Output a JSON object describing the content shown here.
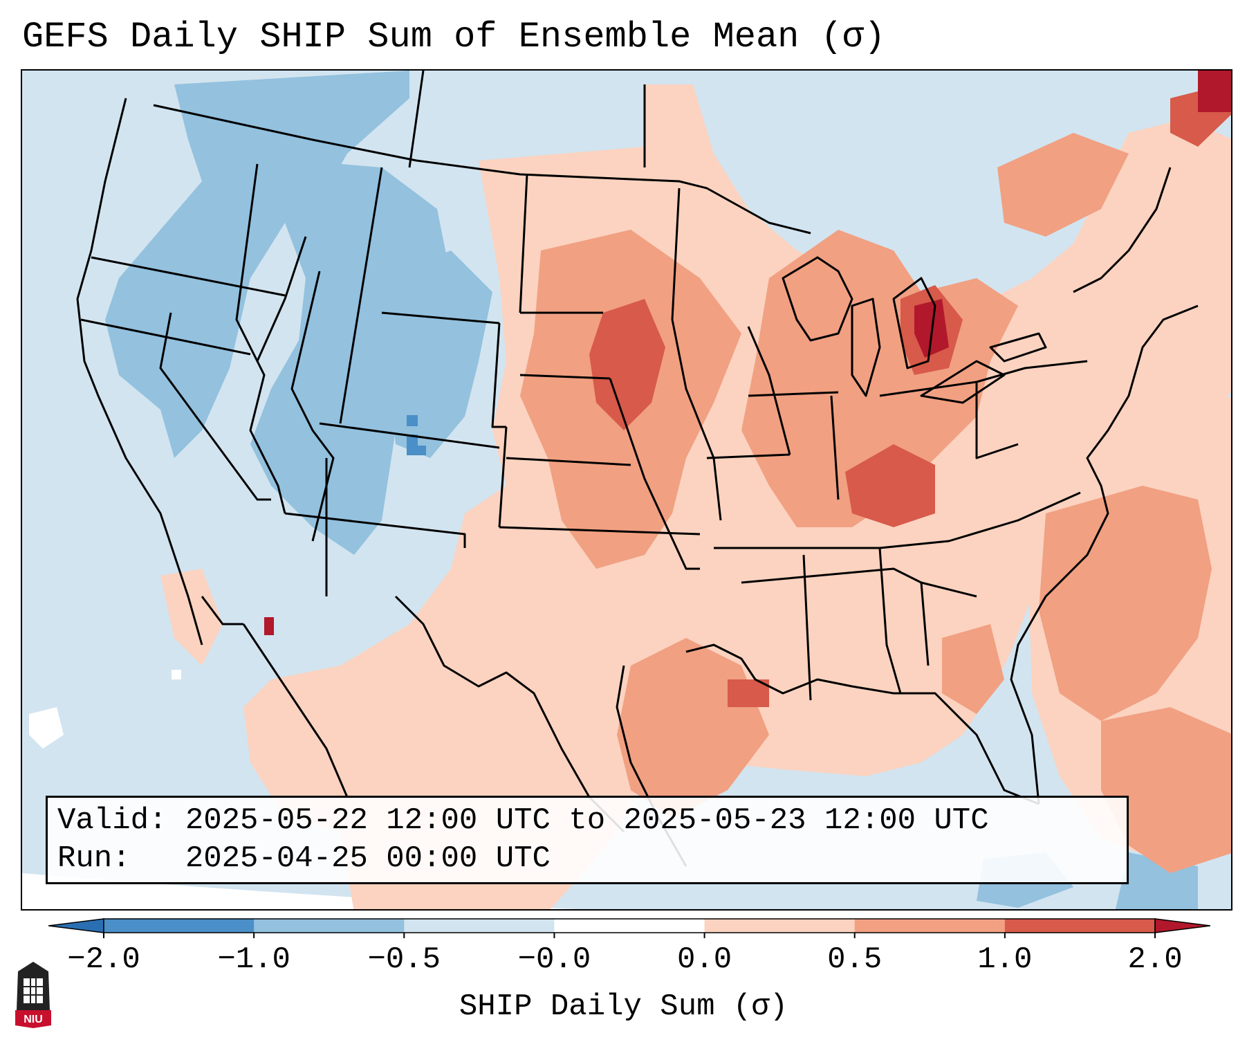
{
  "title": "GEFS Daily SHIP Sum of Ensemble Mean (σ)",
  "info": {
    "valid_line": "Valid: 2025-05-22 12:00 UTC to 2025-05-23 12:00 UTC",
    "run_line": "Run:   2025-04-25 00:00 UTC"
  },
  "colorbar": {
    "label": "SHIP Daily Sum (σ)",
    "ticks": [
      "−2.0",
      "−1.0",
      "−0.5",
      "−0.0",
      "0.0",
      "0.5",
      "1.0",
      "2.0"
    ],
    "colors": [
      "#2b6fb3",
      "#4a8fc8",
      "#93c1de",
      "#d2e4f0",
      "#fbd3c0",
      "#f1a082",
      "#d75a4a",
      "#b2182b"
    ],
    "extend": "both"
  },
  "map": {
    "projection": "Lambert Conformal over CONUS",
    "features": [
      "state boundaries",
      "coastlines",
      "country borders"
    ],
    "fill_colors": {
      "ocean_and_neutral_negative": "#d2e4f0",
      "weak_negative": "#93c1de",
      "moderate_negative": "#4a8fc8",
      "weak_positive": "#fbd3c0",
      "moderate_positive": "#f1a082",
      "strong_positive": "#d75a4a",
      "extreme_positive": "#b2182b"
    }
  },
  "logo": {
    "text": "NIU",
    "color": "#c8102e"
  }
}
